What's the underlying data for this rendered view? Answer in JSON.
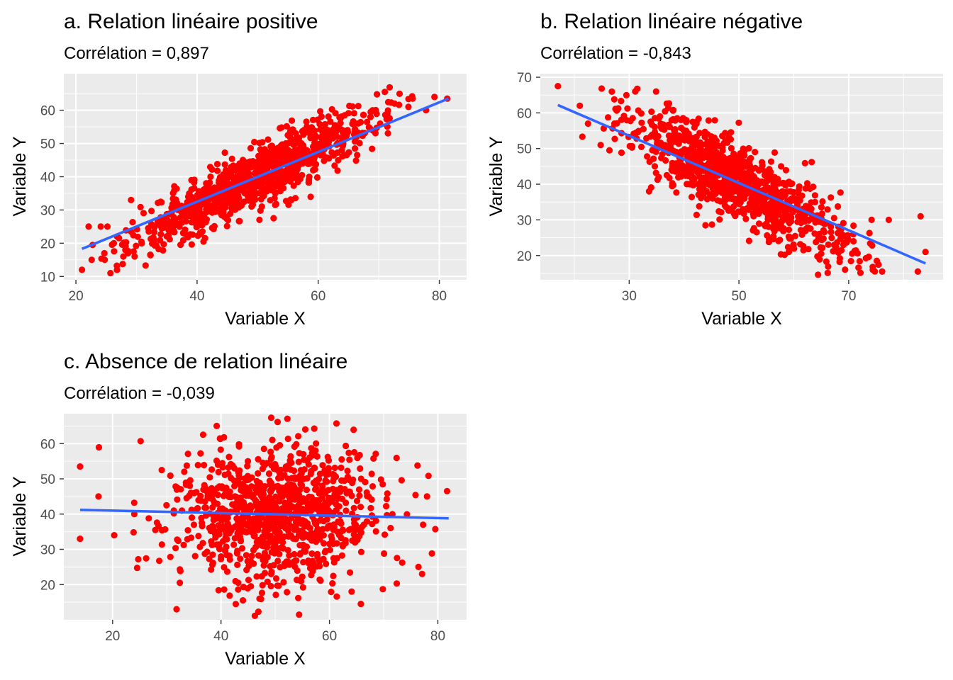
{
  "colors": {
    "panel_background": "#ebebeb",
    "grid": "#ffffff",
    "points": "#ff0000",
    "fit_line": "#3366ff",
    "tick_text": "#4d4d4d"
  },
  "chart_data": [
    {
      "type": "scatter",
      "title": "a. Relation linéaire positive",
      "subtitle": "Corrélation = 0,897",
      "xlabel": "Variable X",
      "ylabel": "Variable Y",
      "xlim": [
        18,
        84.5
      ],
      "ylim": [
        9,
        71
      ],
      "x_ticks": [
        20,
        40,
        60,
        80
      ],
      "y_ticks": [
        10,
        20,
        30,
        40,
        50,
        60
      ],
      "grid": true,
      "n_points": 1000,
      "correlation": 0.897,
      "x_range": [
        21,
        81.5
      ],
      "fit_line": [
        [
          21,
          18.3
        ],
        [
          81.5,
          63.5
        ]
      ],
      "points_sample": [
        [
          21.0,
          12
        ],
        [
          22.1,
          25
        ],
        [
          22.6,
          15
        ],
        [
          24.1,
          25
        ],
        [
          24.7,
          17
        ],
        [
          25.7,
          11
        ],
        [
          26.8,
          22
        ],
        [
          28.2,
          19
        ],
        [
          28.6,
          17
        ],
        [
          29.1,
          33
        ],
        [
          29.7,
          16
        ],
        [
          71.0,
          65.5
        ],
        [
          72.6,
          62
        ],
        [
          74.9,
          61
        ],
        [
          75.6,
          63.5
        ],
        [
          77.8,
          60
        ],
        [
          79.2,
          64
        ],
        [
          81.3,
          63.5
        ]
      ]
    },
    {
      "type": "scatter",
      "title": "b. Relation linéaire négative",
      "subtitle": "Corrélation = -0,843",
      "xlabel": "Variable X",
      "ylabel": "Variable Y",
      "xlim": [
        13.8,
        87.2
      ],
      "ylim": [
        13.2,
        71
      ],
      "x_ticks": [
        30,
        50,
        70
      ],
      "y_ticks": [
        20,
        30,
        40,
        50,
        60,
        70
      ],
      "grid": true,
      "n_points": 1000,
      "correlation": -0.843,
      "x_range": [
        17,
        84
      ],
      "fit_line": [
        [
          17,
          62.2
        ],
        [
          84,
          17.8
        ]
      ],
      "points_sample": [
        [
          17.0,
          67.5
        ],
        [
          21.0,
          62
        ],
        [
          22.5,
          57
        ],
        [
          24.8,
          51
        ],
        [
          26.4,
          49.5
        ],
        [
          27.3,
          57
        ],
        [
          34.9,
          66
        ],
        [
          43.9,
          28.5
        ],
        [
          74.4,
          16
        ],
        [
          76.1,
          15.5
        ],
        [
          77.3,
          30
        ],
        [
          82.6,
          15.5
        ],
        [
          83.1,
          31
        ],
        [
          84.0,
          21
        ]
      ]
    },
    {
      "type": "scatter",
      "title": "c. Absence de relation linéaire",
      "subtitle": "Corrélation = -0,039",
      "xlabel": "Variable X",
      "ylabel": "Variable Y",
      "xlim": [
        11,
        85.3
      ],
      "ylim": [
        10,
        68.5
      ],
      "x_ticks": [
        20,
        40,
        60,
        80
      ],
      "y_ticks": [
        20,
        30,
        40,
        50,
        60
      ],
      "grid": true,
      "n_points": 1000,
      "correlation": -0.039,
      "x_range": [
        14,
        82
      ],
      "fit_line": [
        [
          14,
          41.2
        ],
        [
          82,
          38.8
        ]
      ],
      "points_sample": [
        [
          14.0,
          53.5
        ],
        [
          14.0,
          33
        ],
        [
          17.4,
          45
        ],
        [
          20.3,
          34
        ],
        [
          24.0,
          40
        ],
        [
          31.8,
          13
        ],
        [
          32.4,
          20.5
        ],
        [
          39.2,
          65
        ],
        [
          47.1,
          16
        ],
        [
          64.1,
          18
        ],
        [
          65.8,
          14.5
        ],
        [
          78.0,
          45
        ],
        [
          81.7,
          46.5
        ],
        [
          77.1,
          23
        ]
      ]
    }
  ]
}
